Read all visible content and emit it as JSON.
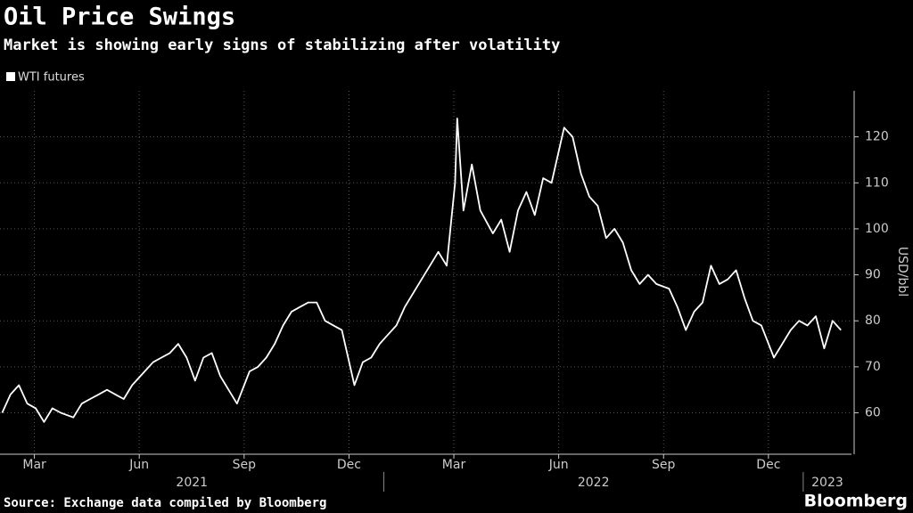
{
  "chart_data": {
    "type": "line",
    "title": "Oil Price Swings",
    "subtitle": "Market is showing early signs of stabilizing after volatility",
    "y_label": "USD/bbl",
    "source": "Source: Exchange data compiled by Bloomberg",
    "brand": "Bloomberg",
    "grid": true,
    "legend_position": "top-left",
    "xlim": [
      2021.085,
      2023.115
    ],
    "ylim": [
      51,
      130
    ],
    "yticks": [
      60,
      70,
      80,
      90,
      100,
      110,
      120
    ],
    "xticks": [
      {
        "value": 2021.167,
        "label": "Mar"
      },
      {
        "value": 2021.417,
        "label": "Jun"
      },
      {
        "value": 2021.667,
        "label": "Sep"
      },
      {
        "value": 2021.917,
        "label": "Dec"
      },
      {
        "value": 2022.167,
        "label": "Mar"
      },
      {
        "value": 2022.417,
        "label": "Jun"
      },
      {
        "value": 2022.667,
        "label": "Sep"
      },
      {
        "value": 2022.917,
        "label": "Dec"
      }
    ],
    "year_ticks": [
      2021,
      2022,
      2023
    ],
    "series": [
      {
        "name": "WTI futures",
        "color": "#ffffff",
        "x": [
          2021.09,
          2021.11,
          2021.13,
          2021.15,
          2021.17,
          2021.19,
          2021.21,
          2021.23,
          2021.26,
          2021.28,
          2021.3,
          2021.32,
          2021.34,
          2021.36,
          2021.38,
          2021.4,
          2021.43,
          2021.45,
          2021.47,
          2021.49,
          2021.51,
          2021.53,
          2021.55,
          2021.57,
          2021.59,
          2021.61,
          2021.63,
          2021.65,
          2021.68,
          2021.7,
          2021.72,
          2021.74,
          2021.76,
          2021.78,
          2021.8,
          2021.82,
          2021.84,
          2021.86,
          2021.88,
          2021.9,
          2021.93,
          2021.95,
          2021.97,
          2021.99,
          2022.01,
          2022.03,
          2022.05,
          2022.07,
          2022.09,
          2022.11,
          2022.13,
          2022.15,
          2022.17,
          2022.175,
          2022.19,
          2022.21,
          2022.23,
          2022.26,
          2022.28,
          2022.3,
          2022.32,
          2022.34,
          2022.36,
          2022.38,
          2022.4,
          2022.42,
          2022.43,
          2022.45,
          2022.47,
          2022.49,
          2022.51,
          2022.53,
          2022.55,
          2022.57,
          2022.59,
          2022.61,
          2022.63,
          2022.65,
          2022.68,
          2022.7,
          2022.72,
          2022.74,
          2022.76,
          2022.78,
          2022.8,
          2022.82,
          2022.84,
          2022.86,
          2022.88,
          2022.9,
          2022.93,
          2022.95,
          2022.97,
          2022.99,
          2023.01,
          2023.03,
          2023.05,
          2023.07,
          2023.09
        ],
        "values": [
          60,
          64,
          66,
          62,
          61,
          58,
          61,
          60,
          59,
          62,
          63,
          64,
          65,
          64,
          63,
          66,
          69,
          71,
          72,
          73,
          75,
          72,
          67,
          72,
          73,
          68,
          65,
          62,
          69,
          70,
          72,
          75,
          79,
          82,
          83,
          84,
          84,
          80,
          79,
          78,
          66,
          71,
          72,
          75,
          77,
          79,
          83,
          86,
          89,
          92,
          95,
          92,
          110,
          124,
          104,
          114,
          104,
          99,
          102,
          95,
          104,
          108,
          103,
          111,
          110,
          118,
          122,
          120,
          112,
          107,
          105,
          98,
          100,
          97,
          91,
          88,
          90,
          88,
          87,
          83,
          78,
          82,
          84,
          92,
          88,
          89,
          91,
          85,
          80,
          79,
          72,
          75,
          78,
          80,
          79,
          81,
          74,
          80,
          78
        ]
      }
    ]
  }
}
